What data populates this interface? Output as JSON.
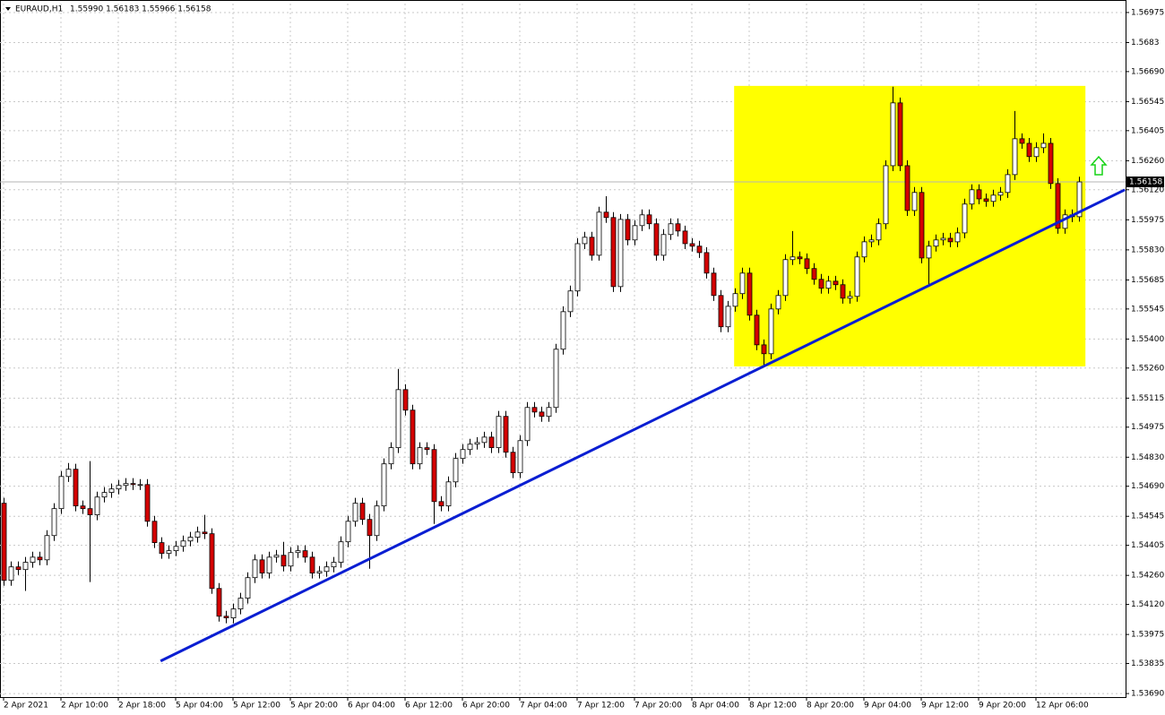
{
  "chart_data": {
    "type": "candlestick",
    "title": "EURAUD,H1",
    "ohlc_label": "1.55990 1.56183 1.55966 1.56158",
    "up_color": "#ffffff",
    "down_color": "#d40000",
    "outline_color": "#000000",
    "grid": true,
    "ylim": [
      1.53673,
      1.57018
    ],
    "yticks": [
      1.56975,
      1.5683,
      {
        "value": 1.5669,
        "label": "1.56690"
      },
      1.56545,
      1.56405,
      {
        "value": 1.5626,
        "label": "1.56260"
      },
      {
        "value": 1.5612,
        "label": "1.56120"
      },
      1.55975,
      {
        "value": 1.5583,
        "label": "1.55830"
      },
      1.55685,
      1.55545,
      {
        "value": 1.554,
        "label": "1.55400"
      },
      {
        "value": 1.5526,
        "label": "1.55260"
      },
      1.55115,
      1.54975,
      {
        "value": 1.5483,
        "label": "1.54830"
      },
      {
        "value": 1.5469,
        "label": "1.54690"
      },
      1.54545,
      1.54405,
      {
        "value": 1.5426,
        "label": "1.54260"
      },
      {
        "value": 1.5412,
        "label": "1.54120"
      },
      1.53975,
      1.53835,
      {
        "value": 1.5369,
        "label": "1.53690"
      }
    ],
    "current_price": {
      "value": 1.56158,
      "label": "1.56158"
    },
    "categories": [
      "2 Apr 2021",
      null,
      null,
      null,
      null,
      null,
      null,
      null,
      "2 Apr 10:00",
      null,
      null,
      null,
      null,
      null,
      null,
      null,
      "2 Apr 18:00",
      null,
      null,
      null,
      null,
      null,
      null,
      null,
      "5 Apr 04:00",
      null,
      null,
      null,
      null,
      null,
      null,
      null,
      "5 Apr 12:00",
      null,
      null,
      null,
      null,
      null,
      null,
      null,
      "5 Apr 20:00",
      null,
      null,
      null,
      null,
      null,
      null,
      null,
      "6 Apr 04:00",
      null,
      null,
      null,
      null,
      null,
      null,
      null,
      "6 Apr 12:00",
      null,
      null,
      null,
      null,
      null,
      null,
      null,
      "6 Apr 20:00",
      null,
      null,
      null,
      null,
      null,
      null,
      null,
      "7 Apr 04:00",
      null,
      null,
      null,
      null,
      null,
      null,
      null,
      "7 Apr 12:00",
      null,
      null,
      null,
      null,
      null,
      null,
      null,
      "7 Apr 20:00",
      null,
      null,
      null,
      null,
      null,
      null,
      null,
      "8 Apr 04:00",
      null,
      null,
      null,
      null,
      null,
      null,
      null,
      "8 Apr 12:00",
      null,
      null,
      null,
      null,
      null,
      null,
      null,
      "8 Apr 20:00",
      null,
      null,
      null,
      null,
      null,
      null,
      null,
      "9 Apr 04:00",
      null,
      null,
      null,
      null,
      null,
      null,
      null,
      "9 Apr 12:00",
      null,
      null,
      null,
      null,
      null,
      null,
      null,
      "9 Apr 20:00",
      null,
      null,
      null,
      null,
      null,
      null,
      null,
      "12 Apr 06:00",
      null,
      null,
      null,
      null,
      null,
      null
    ],
    "open": [
      1.54608,
      1.54236,
      1.54301,
      1.54288,
      1.54323,
      1.54348,
      1.54335,
      1.54452,
      1.54582,
      1.54737,
      1.54772,
      1.54595,
      1.54582,
      1.54552,
      1.54638,
      1.5466,
      1.54677,
      1.54694,
      1.54703,
      1.54698,
      1.54698,
      1.54521,
      1.54418,
      1.54366,
      1.54379,
      1.544,
      1.54426,
      1.54444,
      1.54469,
      1.54461,
      1.54197,
      1.54063,
      1.54055,
      1.54098,
      1.5415,
      1.54249,
      1.54335,
      1.54271,
      1.54348,
      1.54357,
      1.54305,
      1.5437,
      1.54379,
      1.54348,
      1.54271,
      1.54279,
      1.54301,
      1.54323,
      1.54422,
      1.54521,
      1.54608,
      1.5453,
      1.54452,
      1.54595,
      1.54798,
      1.54876,
      1.55156,
      1.55057,
      1.54798,
      1.54876,
      1.54867,
      1.54616,
      1.54595,
      1.54711,
      1.54824,
      1.54867,
      1.54893,
      1.54901,
      1.54927,
      1.54876,
      1.55027,
      1.54854,
      1.54755,
      1.5491,
      1.5507,
      1.55048,
      1.55027,
      1.5507,
      1.55351,
      1.55532,
      1.55632,
      1.5586,
      1.55891,
      1.55804,
      1.56012,
      1.55986,
      1.55653,
      1.55977,
      1.55878,
      1.55947,
      1.55999,
      1.55956,
      1.55804,
      1.55904,
      1.55956,
      1.55921,
      1.5586,
      1.55848,
      1.55817,
      1.55718,
      1.5561,
      1.55459,
      1.55558,
      1.55619,
      1.55718,
      1.55515,
      1.55372,
      1.55329,
      1.55545,
      1.5561,
      1.55783,
      1.55796,
      1.55787,
      1.5574,
      1.55688,
      1.55645,
      1.55679,
      1.55662,
      1.55597,
      1.55606,
      1.55796,
      1.55869,
      1.55878,
      1.55956,
      1.56236,
      1.56539,
      1.56236,
      1.5602,
      1.56107,
      1.55791,
      1.55848,
      1.55878,
      1.55886,
      1.55869,
      1.55912,
      1.56051,
      1.5612,
      1.56076,
      1.56064,
      1.56094,
      1.56107,
      1.56193,
      1.56366,
      1.56344,
      1.5628,
      1.56323,
      1.56344,
      1.5615,
      1.55934,
      1.55999,
      1.5599
    ],
    "high": [
      1.54634,
      1.54327,
      1.54327,
      1.54349,
      1.54374,
      1.54374,
      1.54478,
      1.54608,
      1.54763,
      1.54802,
      1.54798,
      1.54621,
      1.54811,
      1.54664,
      1.54686,
      1.54703,
      1.5472,
      1.54729,
      1.54729,
      1.54724,
      1.54724,
      1.54547,
      1.54444,
      1.54405,
      1.54426,
      1.54452,
      1.5447,
      1.54495,
      1.54552,
      1.54487,
      1.54223,
      1.54089,
      1.54124,
      1.54176,
      1.54275,
      1.54361,
      1.54361,
      1.54374,
      1.54383,
      1.54422,
      1.54396,
      1.54405,
      1.54405,
      1.54374,
      1.54305,
      1.54327,
      1.54349,
      1.54448,
      1.54547,
      1.54634,
      1.54634,
      1.54556,
      1.54621,
      1.54824,
      1.54902,
      1.55256,
      1.55182,
      1.55083,
      1.54902,
      1.54902,
      1.54893,
      1.54642,
      1.54737,
      1.5485,
      1.54893,
      1.54919,
      1.54927,
      1.54953,
      1.54953,
      1.55053,
      1.55053,
      1.5488,
      1.54936,
      1.55096,
      1.55096,
      1.55074,
      1.55096,
      1.55377,
      1.55558,
      1.55658,
      1.55886,
      1.55917,
      1.55917,
      1.56038,
      1.56089,
      1.56012,
      1.56003,
      1.56003,
      1.55973,
      1.56025,
      1.56025,
      1.55982,
      1.5593,
      1.55982,
      1.55982,
      1.55947,
      1.55886,
      1.55874,
      1.55843,
      1.55744,
      1.55636,
      1.55584,
      1.55645,
      1.55744,
      1.55744,
      1.55541,
      1.55398,
      1.55571,
      1.55636,
      1.55809,
      1.55921,
      1.55822,
      1.55813,
      1.55766,
      1.55714,
      1.55705,
      1.55705,
      1.55688,
      1.55632,
      1.55822,
      1.55895,
      1.55904,
      1.55982,
      1.56262,
      1.56617,
      1.56565,
      1.56262,
      1.56133,
      1.56133,
      1.55874,
      1.55904,
      1.55912,
      1.55912,
      1.55938,
      1.56077,
      1.56146,
      1.56146,
      1.56102,
      1.5612,
      1.56133,
      1.56219,
      1.565,
      1.56392,
      1.5637,
      1.56349,
      1.56392,
      1.5637,
      1.56176,
      1.56025,
      1.56025,
      1.56183
    ],
    "low": [
      1.5421,
      1.5421,
      1.54262,
      1.54185,
      1.54297,
      1.54309,
      1.54309,
      1.54426,
      1.54556,
      1.54711,
      1.54569,
      1.54556,
      1.54228,
      1.54526,
      1.54612,
      1.54634,
      1.54651,
      1.54668,
      1.54672,
      1.54672,
      1.54495,
      1.54392,
      1.5434,
      1.5434,
      1.54353,
      1.54374,
      1.544,
      1.54418,
      1.54435,
      1.54171,
      1.54037,
      1.54029,
      1.54029,
      1.54072,
      1.54124,
      1.54223,
      1.54245,
      1.54245,
      1.54322,
      1.54279,
      1.54279,
      1.54344,
      1.54322,
      1.54245,
      1.54245,
      1.54253,
      1.54275,
      1.54297,
      1.54396,
      1.54495,
      1.54504,
      1.54292,
      1.54426,
      1.54569,
      1.54772,
      1.5485,
      1.55031,
      1.54772,
      1.54772,
      1.54841,
      1.54508,
      1.54569,
      1.54569,
      1.54685,
      1.54798,
      1.54841,
      1.54867,
      1.54875,
      1.5485,
      1.5485,
      1.54828,
      1.54729,
      1.54729,
      1.54884,
      1.55022,
      1.55001,
      1.55001,
      1.55044,
      1.55325,
      1.55506,
      1.55606,
      1.55834,
      1.55778,
      1.55778,
      1.5596,
      1.55627,
      1.55627,
      1.55852,
      1.55852,
      1.55921,
      1.5593,
      1.55778,
      1.55778,
      1.55878,
      1.55895,
      1.55834,
      1.55822,
      1.55791,
      1.55692,
      1.55584,
      1.55433,
      1.55433,
      1.55532,
      1.55593,
      1.55489,
      1.55346,
      1.55264,
      1.55303,
      1.55519,
      1.55584,
      1.55757,
      1.55761,
      1.55714,
      1.55662,
      1.55619,
      1.55619,
      1.55636,
      1.55571,
      1.55571,
      1.5558,
      1.5577,
      1.55843,
      1.55852,
      1.5593,
      1.5621,
      1.5621,
      1.55994,
      1.55994,
      1.55765,
      1.55653,
      1.55822,
      1.55852,
      1.55843,
      1.55843,
      1.55886,
      1.56025,
      1.5605,
      1.56038,
      1.56038,
      1.56068,
      1.56081,
      1.56167,
      1.56318,
      1.56254,
      1.56254,
      1.56297,
      1.56124,
      1.55908,
      1.55908,
      1.55964,
      1.55966
    ],
    "close": [
      1.54236,
      1.54301,
      1.54288,
      1.54323,
      1.54348,
      1.54335,
      1.54452,
      1.54582,
      1.54737,
      1.54772,
      1.54595,
      1.54582,
      1.54552,
      1.54638,
      1.5466,
      1.54677,
      1.54694,
      1.54703,
      1.54698,
      1.54698,
      1.54521,
      1.54418,
      1.54366,
      1.54379,
      1.544,
      1.54426,
      1.54444,
      1.54469,
      1.54461,
      1.54197,
      1.54063,
      1.54055,
      1.54098,
      1.5415,
      1.54249,
      1.54335,
      1.54271,
      1.54348,
      1.54357,
      1.54305,
      1.5437,
      1.54379,
      1.54348,
      1.54271,
      1.54279,
      1.54301,
      1.54323,
      1.54422,
      1.54521,
      1.54608,
      1.5453,
      1.54452,
      1.54595,
      1.54798,
      1.54876,
      1.55156,
      1.55057,
      1.54798,
      1.54876,
      1.54867,
      1.54616,
      1.54595,
      1.54711,
      1.54824,
      1.54867,
      1.54893,
      1.54901,
      1.54927,
      1.54876,
      1.55027,
      1.54854,
      1.54755,
      1.5491,
      1.5507,
      1.55048,
      1.55027,
      1.5507,
      1.55351,
      1.55532,
      1.55632,
      1.5586,
      1.55891,
      1.55804,
      1.56012,
      1.55986,
      1.55653,
      1.55977,
      1.55878,
      1.55947,
      1.55999,
      1.55956,
      1.55804,
      1.55904,
      1.55956,
      1.55921,
      1.5586,
      1.55848,
      1.55817,
      1.55718,
      1.5561,
      1.55459,
      1.55558,
      1.55619,
      1.55718,
      1.55515,
      1.55372,
      1.55329,
      1.55545,
      1.5561,
      1.55783,
      1.55796,
      1.55787,
      1.5574,
      1.55688,
      1.55645,
      1.55679,
      1.55662,
      1.55597,
      1.55606,
      1.55796,
      1.55869,
      1.55878,
      1.55956,
      1.56236,
      1.56539,
      1.56236,
      1.5602,
      1.56107,
      1.55791,
      1.55848,
      1.55878,
      1.55886,
      1.55869,
      1.55912,
      1.56051,
      1.5612,
      1.56076,
      1.56064,
      1.56094,
      1.56107,
      1.56193,
      1.56366,
      1.56344,
      1.5628,
      1.56323,
      1.56344,
      1.5615,
      1.55934,
      1.55999,
      1.5599,
      1.56158
    ],
    "highlight": {
      "color": "#ffff00",
      "x": [
        101.9,
        150.9
      ],
      "y": [
        1.55268,
        1.56621
      ]
    },
    "trendline": {
      "color": "#0a1ed2",
      "x": [
        21.9,
        156.4
      ],
      "y": [
        1.53847,
        1.5612
      ]
    }
  }
}
